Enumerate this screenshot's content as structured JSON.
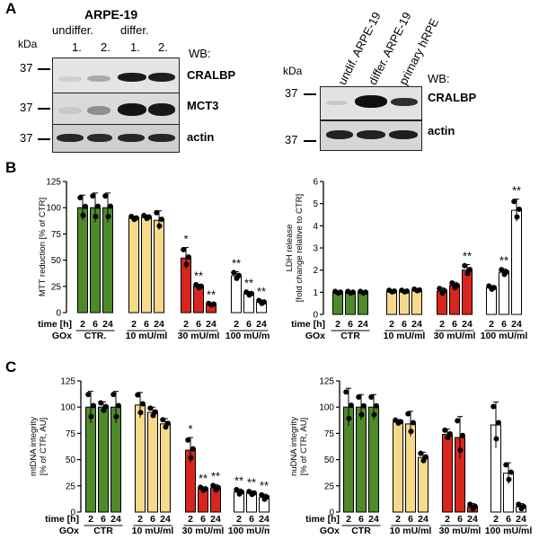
{
  "panel_A": {
    "label": "A",
    "left_blot": {
      "title": "ARPE-19",
      "group_labels": [
        "undiffer.",
        "differ."
      ],
      "lane_labels": [
        "1.",
        "2.",
        "1.",
        "2."
      ],
      "kda_label": "kDa",
      "markers": [
        "37",
        "37",
        "37"
      ],
      "wb_label": "WB:",
      "proteins": [
        "CRALBP",
        "MCT3",
        "actin"
      ]
    },
    "right_blot": {
      "lane_labels": [
        "undif. ARPE-19",
        "differ. ARPE-19",
        "primary hRPE"
      ],
      "kda_label": "kDa",
      "markers": [
        "37",
        "37"
      ],
      "wb_label": "WB:",
      "proteins": [
        "CRALBP",
        "actin"
      ]
    }
  },
  "panel_B": {
    "label": "B"
  },
  "panel_C": {
    "label": "C"
  },
  "colors": {
    "ctr": "#4e8a2a",
    "low": "#f6d98a",
    "mid": "#d7261e",
    "high": "#ffffff"
  },
  "chart_data": [
    {
      "type": "bar",
      "panel": "B-left",
      "ylabel": "MTT reduction [% of CTR]",
      "ylim": [
        0,
        125
      ],
      "yticks": [
        0,
        25,
        50,
        75,
        100,
        125
      ],
      "row_label_time": "time [h]",
      "row_label_treatment": "GOx",
      "time_labels": [
        "2",
        "6",
        "24"
      ],
      "groups": [
        {
          "name": "CTR.",
          "values": [
            100,
            100,
            100
          ],
          "errors": [
            12,
            14,
            14
          ]
        },
        {
          "name": "10 mU/ml",
          "values": [
            90,
            91,
            88
          ],
          "errors": [
            2,
            2,
            9
          ]
        },
        {
          "name": "30 mU/ml",
          "values": [
            52,
            25,
            8
          ],
          "errors": [
            10,
            2,
            1
          ]
        },
        {
          "name": "100 mU/ml",
          "values": [
            35,
            18,
            10
          ],
          "errors": [
            4,
            2,
            2
          ]
        }
      ],
      "significance": [
        [
          "",
          "",
          ""
        ],
        [
          "",
          "",
          ""
        ],
        [
          "*",
          "**",
          "**"
        ],
        [
          "**",
          "**",
          "**"
        ]
      ]
    },
    {
      "type": "bar",
      "panel": "B-right",
      "ylabel": "LDH release [fold change relative to CTR]",
      "ylim": [
        0,
        6
      ],
      "yticks": [
        0,
        1,
        2,
        3,
        4,
        5,
        6
      ],
      "row_label_time": "time [h]",
      "row_label_treatment": "GOx",
      "time_labels": [
        "2",
        "6",
        "24"
      ],
      "groups": [
        {
          "name": "CTR",
          "values": [
            1.0,
            1.0,
            1.0
          ],
          "errors": [
            0.05,
            0.05,
            0.05
          ]
        },
        {
          "name": "10 mU/ml",
          "values": [
            1.05,
            1.05,
            1.1
          ],
          "errors": [
            0.05,
            0.05,
            0.05
          ]
        },
        {
          "name": "30 mU/ml",
          "values": [
            1.05,
            1.3,
            2.0
          ],
          "errors": [
            0.15,
            0.15,
            0.25
          ]
        },
        {
          "name": "100 mU/ml",
          "values": [
            1.2,
            1.9,
            4.7
          ],
          "errors": [
            0.1,
            0.15,
            0.5
          ]
        }
      ],
      "significance": [
        [
          "",
          "",
          ""
        ],
        [
          "",
          "",
          ""
        ],
        [
          "",
          "",
          "**"
        ],
        [
          "",
          "**",
          "**"
        ]
      ]
    },
    {
      "type": "bar",
      "panel": "C-left",
      "ylabel": "mtDNA integrity [% of CTR, AU]",
      "ylim": [
        0,
        125
      ],
      "yticks": [
        0,
        25,
        50,
        75,
        100,
        125
      ],
      "row_label_time": "time [h]",
      "row_label_treatment": "GOx",
      "time_labels": [
        "2",
        "6",
        "24"
      ],
      "groups": [
        {
          "name": "CTR",
          "values": [
            100,
            100,
            100
          ],
          "errors": [
            15,
            5,
            15
          ]
        },
        {
          "name": "10 mU/ml",
          "values": [
            102,
            95,
            84
          ],
          "errors": [
            12,
            5,
            5
          ]
        },
        {
          "name": "30 mU/ml",
          "values": [
            59,
            22,
            23
          ],
          "errors": [
            12,
            2,
            3
          ]
        },
        {
          "name": "100 mU/ml",
          "values": [
            19,
            18,
            14
          ],
          "errors": [
            3,
            2,
            3
          ]
        }
      ],
      "significance": [
        [
          "",
          "",
          ""
        ],
        [
          "",
          "",
          ""
        ],
        [
          "*",
          "**",
          "**"
        ],
        [
          "**",
          "**",
          "**"
        ]
      ]
    },
    {
      "type": "bar",
      "panel": "C-right",
      "ylabel": "nuDNA integrity [% of CTR, AU]",
      "ylim": [
        0,
        125
      ],
      "yticks": [
        0,
        25,
        50,
        75,
        100,
        125
      ],
      "row_label_time": "time [h]",
      "row_label_treatment": "GOx",
      "time_labels": [
        "2",
        "6",
        "24"
      ],
      "groups": [
        {
          "name": "CTR",
          "values": [
            100,
            100,
            100
          ],
          "errors": [
            18,
            12,
            12
          ]
        },
        {
          "name": "10 mU/ml",
          "values": [
            86,
            84,
            52
          ],
          "errors": [
            2,
            12,
            5
          ]
        },
        {
          "name": "30 mU/ml",
          "values": [
            74,
            71,
            5
          ],
          "errors": [
            5,
            20,
            3
          ]
        },
        {
          "name": "100 mU/ml",
          "values": [
            83,
            37,
            5
          ],
          "errors": [
            22,
            10,
            3
          ]
        }
      ],
      "significance": [
        [
          "",
          "",
          ""
        ],
        [
          "",
          "",
          ""
        ],
        [
          "",
          "",
          ""
        ],
        [
          "",
          "",
          ""
        ]
      ]
    }
  ]
}
